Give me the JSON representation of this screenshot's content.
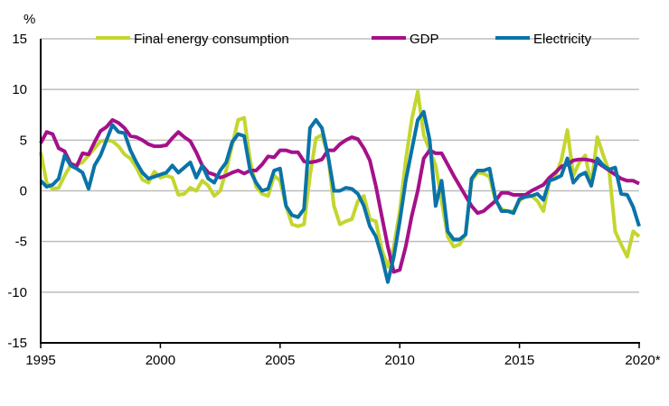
{
  "chart_data": {
    "type": "line",
    "title": "",
    "ylabel": "%",
    "xlabel": "",
    "ylim": [
      -15,
      15
    ],
    "yticks": [
      "15",
      "10",
      "5",
      "0",
      "-5",
      "-10",
      "-15"
    ],
    "xticks": [
      "1995",
      "2000",
      "2005",
      "2010",
      "2015",
      "2020*"
    ],
    "xlim": [
      1995,
      2020
    ],
    "grid": true,
    "legend_position": "top",
    "x": [
      "1995Q1",
      "1995Q2",
      "1995Q3",
      "1995Q4",
      "1996Q1",
      "1996Q2",
      "1996Q3",
      "1996Q4",
      "1997Q1",
      "1997Q2",
      "1997Q3",
      "1997Q4",
      "1998Q1",
      "1998Q2",
      "1998Q3",
      "1998Q4",
      "1999Q1",
      "1999Q2",
      "1999Q3",
      "1999Q4",
      "2000Q1",
      "2000Q2",
      "2000Q3",
      "2000Q4",
      "2001Q1",
      "2001Q2",
      "2001Q3",
      "2001Q4",
      "2002Q1",
      "2002Q2",
      "2002Q3",
      "2002Q4",
      "2003Q1",
      "2003Q2",
      "2003Q3",
      "2003Q4",
      "2004Q1",
      "2004Q2",
      "2004Q3",
      "2004Q4",
      "2005Q1",
      "2005Q2",
      "2005Q3",
      "2005Q4",
      "2006Q1",
      "2006Q2",
      "2006Q3",
      "2006Q4",
      "2007Q1",
      "2007Q2",
      "2007Q3",
      "2007Q4",
      "2008Q1",
      "2008Q2",
      "2008Q3",
      "2008Q4",
      "2009Q1",
      "2009Q2",
      "2009Q3",
      "2009Q4",
      "2010Q1",
      "2010Q2",
      "2010Q3",
      "2010Q4",
      "2011Q1",
      "2011Q2",
      "2011Q3",
      "2011Q4",
      "2012Q1",
      "2012Q2",
      "2012Q3",
      "2012Q4",
      "2013Q1",
      "2013Q2",
      "2013Q3",
      "2013Q4",
      "2014Q1",
      "2014Q2",
      "2014Q3",
      "2014Q4",
      "2015Q1",
      "2015Q2",
      "2015Q3",
      "2015Q4",
      "2016Q1",
      "2016Q2",
      "2016Q3",
      "2016Q4",
      "2017Q1",
      "2017Q2",
      "2017Q3",
      "2017Q4",
      "2018Q1",
      "2018Q2",
      "2018Q3",
      "2018Q4",
      "2019Q1",
      "2019Q2",
      "2019Q3",
      "2019Q4",
      "2020Q1"
    ],
    "series": [
      {
        "name": "Final energy consumption",
        "color": "#c4d62e",
        "values": [
          3.8,
          0.8,
          0.2,
          0.3,
          1.5,
          2.5,
          2.6,
          2.8,
          3.5,
          4.2,
          4.9,
          5.0,
          4.9,
          4.4,
          3.6,
          3.2,
          2.3,
          1.1,
          0.8,
          1.9,
          1.3,
          1.5,
          1.3,
          -0.4,
          -0.3,
          0.3,
          0.0,
          1.0,
          0.5,
          -0.5,
          0.0,
          2.0,
          4.5,
          7.0,
          7.2,
          3.0,
          0.4,
          -0.3,
          -0.5,
          1.5,
          1.0,
          -1.5,
          -3.3,
          -3.5,
          -3.3,
          1.5,
          5.2,
          5.5,
          3.5,
          -1.5,
          -3.3,
          -3.0,
          -2.8,
          -1.0,
          -0.5,
          -2.8,
          -3.0,
          -5.8,
          -7.5,
          -5.5,
          -2.0,
          3.0,
          7.0,
          9.8,
          5.5,
          4.0,
          2.5,
          -1.0,
          -4.5,
          -5.5,
          -5.3,
          -4.3,
          1.0,
          1.8,
          1.7,
          1.4,
          -1.0,
          -1.8,
          -2.0,
          -2.0,
          -1.0,
          -0.5,
          -0.5,
          -1.0,
          -2.0,
          1.0,
          1.5,
          3.0,
          6.0,
          1.5,
          2.8,
          3.5,
          0.5,
          5.3,
          3.5,
          1.9,
          -4.0,
          -5.3,
          -6.5,
          -4.0,
          -4.5
        ]
      },
      {
        "name": "GDP",
        "color": "#a5108a",
        "values": [
          4.7,
          5.8,
          5.6,
          4.2,
          3.9,
          2.7,
          2.4,
          3.7,
          3.6,
          4.8,
          5.9,
          6.3,
          7.0,
          6.7,
          6.2,
          5.4,
          5.3,
          5.0,
          4.6,
          4.4,
          4.4,
          4.5,
          5.2,
          5.8,
          5.3,
          4.9,
          3.8,
          2.5,
          1.8,
          1.6,
          1.3,
          1.5,
          1.8,
          2.0,
          1.7,
          2.0,
          2.0,
          2.6,
          3.4,
          3.3,
          4.0,
          4.0,
          3.8,
          3.8,
          2.9,
          2.8,
          2.9,
          3.1,
          4.0,
          4.0,
          4.6,
          5.0,
          5.3,
          5.1,
          4.2,
          3.0,
          0.5,
          -2.5,
          -5.5,
          -8.0,
          -7.8,
          -5.5,
          -2.5,
          0.0,
          3.2,
          4.0,
          3.7,
          3.7,
          2.6,
          1.5,
          0.5,
          -0.5,
          -1.5,
          -2.2,
          -2.0,
          -1.5,
          -1.0,
          -0.2,
          -0.2,
          -0.4,
          -0.4,
          -0.4,
          0.0,
          0.3,
          0.6,
          1.3,
          1.8,
          2.4,
          2.6,
          3.0,
          3.1,
          3.1,
          3.0,
          2.8,
          2.4,
          2.0,
          1.6,
          1.2,
          1.0,
          1.0,
          0.7
        ]
      },
      {
        "name": "Electricity",
        "color": "#0a73a8",
        "values": [
          1.0,
          0.4,
          0.6,
          1.2,
          3.5,
          2.5,
          2.2,
          1.8,
          0.2,
          2.5,
          3.5,
          5.0,
          6.5,
          5.8,
          5.7,
          4.0,
          2.8,
          1.8,
          1.2,
          1.4,
          1.6,
          1.8,
          2.5,
          1.8,
          2.3,
          2.8,
          1.3,
          2.5,
          1.2,
          0.8,
          2.0,
          2.8,
          4.8,
          5.6,
          5.4,
          2.0,
          0.8,
          0.0,
          0.2,
          2.0,
          2.2,
          -1.5,
          -2.4,
          -2.6,
          -1.8,
          6.2,
          7.0,
          6.2,
          3.5,
          0.0,
          0.0,
          0.3,
          0.2,
          -0.3,
          -1.5,
          -3.5,
          -4.5,
          -6.5,
          -9.0,
          -6.5,
          -3.0,
          1.0,
          4.0,
          7.0,
          7.8,
          5.0,
          -1.5,
          1.0,
          -4.0,
          -4.8,
          -4.8,
          -4.3,
          1.2,
          2.0,
          2.0,
          2.2,
          -0.8,
          -2.0,
          -2.0,
          -2.2,
          -0.8,
          -0.6,
          -0.5,
          -0.3,
          -0.9,
          1.0,
          1.2,
          1.5,
          3.2,
          0.8,
          1.5,
          1.8,
          0.5,
          3.2,
          2.5,
          2.1,
          2.3,
          -0.3,
          -0.4,
          -1.6,
          -3.5
        ]
      }
    ]
  }
}
